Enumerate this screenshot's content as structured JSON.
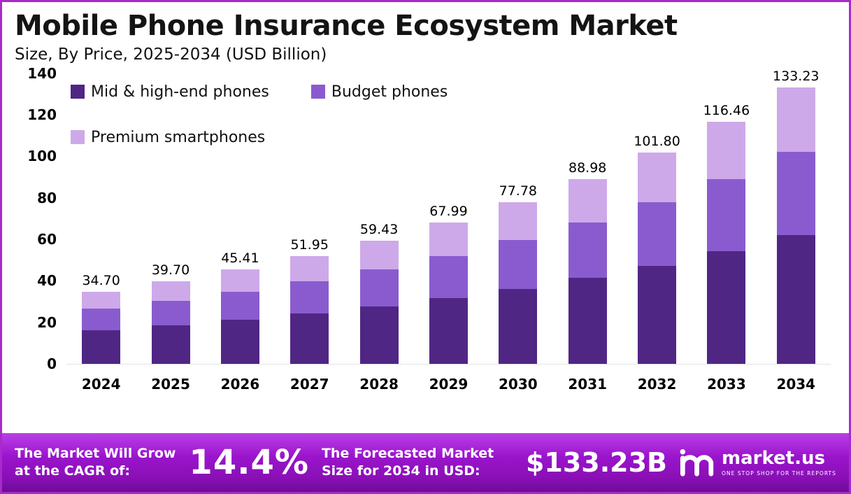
{
  "header": {
    "title": "Mobile Phone Insurance Ecosystem Market",
    "subtitle": "Size, By Price, 2025-2034 (USD Billion)"
  },
  "chart_data": {
    "type": "bar",
    "stacked": true,
    "title": "Mobile Phone Insurance Ecosystem Market Size, By Price, 2025-2034 (USD Billion)",
    "categories": [
      "2024",
      "2025",
      "2026",
      "2027",
      "2028",
      "2029",
      "2030",
      "2031",
      "2032",
      "2033",
      "2034"
    ],
    "series": [
      {
        "name": "Mid & high-end phones",
        "color": "#4F2684",
        "values": [
          16.1,
          18.5,
          21.1,
          24.2,
          27.6,
          31.6,
          36.2,
          41.4,
          47.3,
          54.2,
          62.0
        ]
      },
      {
        "name": "Budget phones",
        "color": "#8A5BCE",
        "values": [
          10.4,
          11.9,
          13.6,
          15.6,
          17.8,
          20.4,
          23.3,
          26.7,
          30.5,
          34.9,
          40.0
        ]
      },
      {
        "name": "Premium smartphones",
        "color": "#CDA9E9",
        "values": [
          8.2,
          9.3,
          10.7,
          12.2,
          14.0,
          16.0,
          18.3,
          20.9,
          24.0,
          27.4,
          31.2
        ]
      }
    ],
    "totals": [
      "34.70",
      "39.70",
      "45.41",
      "51.95",
      "59.43",
      "67.99",
      "77.78",
      "88.98",
      "101.80",
      "116.46",
      "133.23"
    ],
    "ylim": [
      0,
      140
    ],
    "yticks": [
      0,
      20,
      40,
      60,
      80,
      100,
      120,
      140
    ],
    "xlabel": "",
    "ylabel": "",
    "grid": false,
    "legend_position": "top-left"
  },
  "footer": {
    "cagr_label": "The Market Will Grow at the CAGR of:",
    "cagr_value": "14.4%",
    "forecast_label": "The Forecasted Market Size for 2034 in USD:",
    "forecast_value": "$133.23B",
    "brand": "market.us",
    "brand_tagline": "ONE STOP SHOP FOR THE REPORTS"
  }
}
